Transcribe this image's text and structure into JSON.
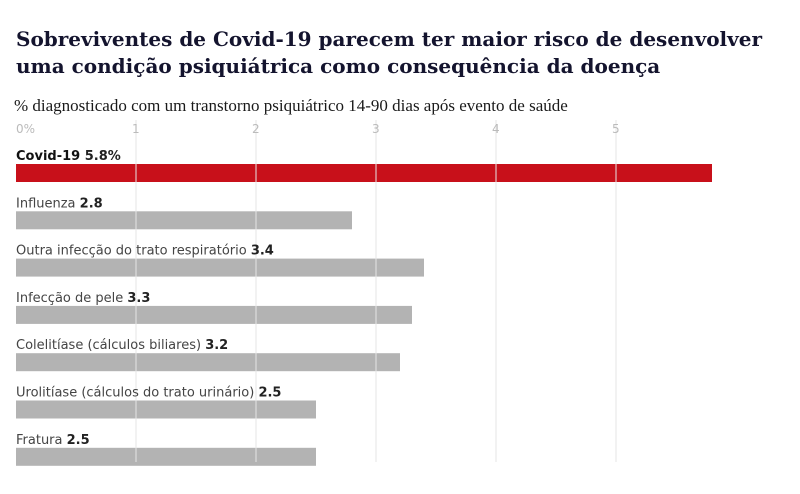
{
  "header": {
    "title": "Sobreviventes de Covid-19 parecem ter maior risco de desenvolver uma condição psiquiátrica como consequência da doença",
    "subtitle": "% diagnosticado com um transtorno psiquiátrico 14-90 dias após evento de saúde"
  },
  "colors": {
    "highlight": "#c8101a",
    "bar": "#b3b3b3",
    "grid": "#e6e6e6"
  },
  "chart_data": {
    "type": "bar",
    "orientation": "horizontal",
    "title": "Sobreviventes de Covid-19 parecem ter maior risco de desenvolver uma condição psiquiátrica como consequência da doença",
    "subtitle": "% diagnosticado com um transtorno psiquiátrico 14-90 dias após evento de saúde",
    "categories": [
      "Covid-19",
      "Influenza",
      "Outra infecção do trato respiratório",
      "Infecção de pele",
      "Colelitíase (cálculos biliares)",
      "Urolitíase (cálculos do trato urinário)",
      "Fratura"
    ],
    "values": [
      5.8,
      2.8,
      3.4,
      3.3,
      3.2,
      2.5,
      2.5
    ],
    "value_labels": [
      "5.8%",
      "2.8",
      "3.4",
      "3.3",
      "3.2",
      "2.5",
      "2.5"
    ],
    "highlight_index": 0,
    "xlim": [
      0,
      5.8
    ],
    "xticks": [
      0,
      1,
      2,
      3,
      4,
      5
    ],
    "xtick_labels": [
      "0%",
      "1",
      "2",
      "3",
      "4",
      "5"
    ],
    "grid": true
  }
}
